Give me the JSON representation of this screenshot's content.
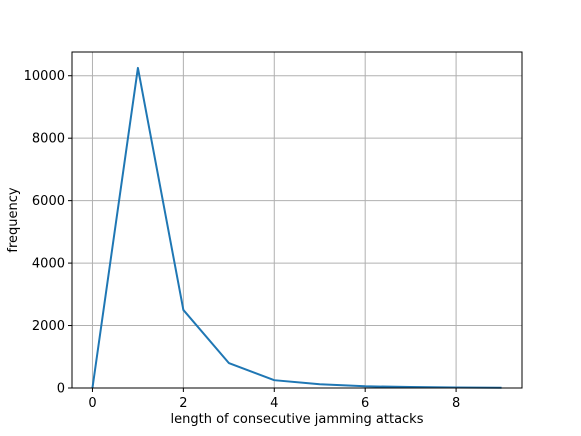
{
  "chart_data": {
    "type": "line",
    "xlabel": "length of consecutive jamming attacks",
    "ylabel": "frequency",
    "xlim": [
      -0.45,
      9.45
    ],
    "ylim": [
      0,
      10760
    ],
    "x_ticks": [
      0,
      2,
      4,
      6,
      8
    ],
    "y_ticks": [
      0,
      2000,
      4000,
      6000,
      8000,
      10000
    ],
    "grid": true,
    "series": [
      {
        "color": "#1f77b4",
        "x": [
          0,
          1,
          2,
          3,
          4,
          5,
          6,
          7,
          8,
          9
        ],
        "y": [
          0,
          10250,
          2500,
          800,
          250,
          120,
          55,
          30,
          15,
          8
        ]
      }
    ]
  }
}
